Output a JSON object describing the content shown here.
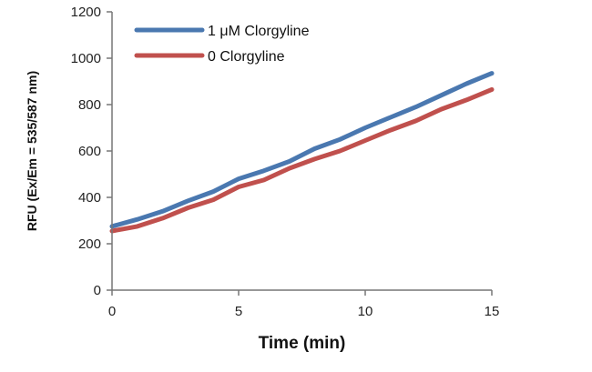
{
  "chart_data": {
    "type": "line",
    "title": "",
    "xlabel": "Time (min)",
    "ylabel": "RFU (Ex/Em = 535/587 nm)",
    "xlim": [
      0,
      15
    ],
    "ylim": [
      0,
      1200
    ],
    "x_ticks": [
      0,
      5,
      10,
      15
    ],
    "y_ticks": [
      0,
      200,
      400,
      600,
      800,
      1000,
      1200
    ],
    "grid": false,
    "legend_position": "top-left",
    "x": [
      0,
      1,
      2,
      3,
      4,
      5,
      6,
      7,
      8,
      9,
      10,
      11,
      12,
      13,
      14,
      15
    ],
    "series": [
      {
        "name": "1 μM Clorgyline",
        "color": "#4a78b0",
        "values": [
          275,
          305,
          340,
          385,
          425,
          480,
          515,
          555,
          610,
          650,
          700,
          745,
          790,
          840,
          890,
          935
        ]
      },
      {
        "name": "0 Clorgyline",
        "color": "#c0504d",
        "values": [
          255,
          275,
          310,
          355,
          390,
          445,
          475,
          525,
          565,
          600,
          645,
          690,
          730,
          780,
          820,
          865
        ]
      }
    ]
  }
}
